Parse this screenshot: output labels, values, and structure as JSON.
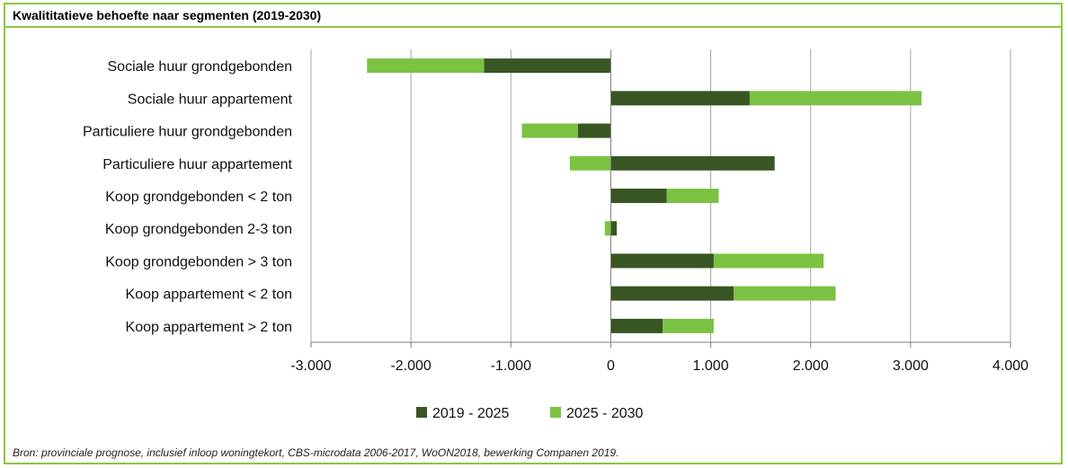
{
  "title": "Kwalititatieve behoefte naar segmenten (2019-2030)",
  "source": "Bron: provinciale prognose, inclusief inloop woningtekort, CBS-microdata 2006-2017, WoON2018, bewerking Companen 2019.",
  "colors": {
    "series1": "#375623",
    "series2": "#7cc242",
    "frame": "#8cc63f",
    "grid": "#a6a6a6"
  },
  "chart_data": {
    "type": "bar",
    "orientation": "horizontal",
    "stacked": true,
    "categories": [
      "Sociale huur grondgebonden",
      "Sociale huur appartement",
      "Particuliere huur grondgebonden",
      "Particuliere huur appartement",
      "Koop grondgebonden < 2 ton",
      "Koop grondgebonden 2-3 ton",
      "Koop grondgebonden > 3 ton",
      "Koop appartement < 2 ton",
      "Koop appartement > 2 ton"
    ],
    "series": [
      {
        "name": "2019 - 2025",
        "values": [
          -1270,
          1390,
          -330,
          1640,
          560,
          60,
          1030,
          1230,
          520
        ]
      },
      {
        "name": "2025 - 2030",
        "values": [
          -1170,
          1720,
          -560,
          -410,
          520,
          -60,
          1100,
          1020,
          510
        ]
      }
    ],
    "xlim": [
      -3000,
      4000
    ],
    "xticks": [
      -3000,
      -2000,
      -1000,
      0,
      1000,
      2000,
      3000,
      4000
    ],
    "xtick_labels": [
      "-3.000",
      "-2.000",
      "-1.000",
      "0",
      "1.000",
      "2.000",
      "3.000",
      "4.000"
    ],
    "grid": true,
    "legend_position": "bottom"
  }
}
